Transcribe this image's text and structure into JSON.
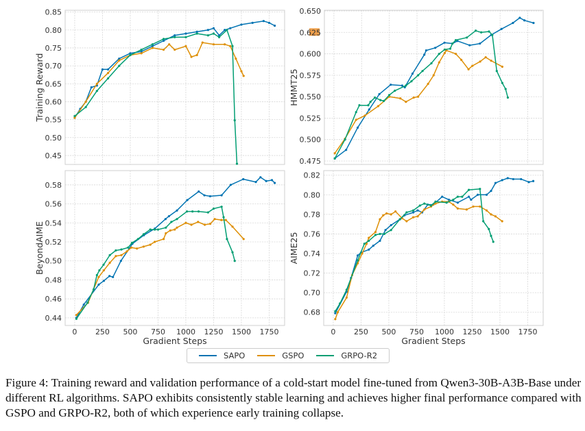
{
  "colors": {
    "SAPO": "#0173b2",
    "GSPO": "#de8f05",
    "GRPO-R2": "#029e73",
    "grid": "#d6d6d6",
    "highlight": "#f0a04b"
  },
  "legend": [
    {
      "label": "SAPO",
      "color": "#0173b2"
    },
    {
      "label": "GSPO",
      "color": "#de8f05"
    },
    {
      "label": "GRPO-R2",
      "color": "#029e73"
    }
  ],
  "caption": "Figure 4: Training reward and validation performance of a cold-start model fine-tuned from Qwen3-30B-A3B-Base under different RL algorithms. SAPO exhibits consistently stable learning and achieves higher final performance compared with GSPO and GRPO-R2, both of which experience early training collapse.",
  "chart_data": [
    {
      "type": "line",
      "title": "",
      "xlabel": "",
      "ylabel": "Training Reward",
      "xlim": [
        -86,
        1889
      ],
      "ylim": [
        0.425,
        0.855
      ],
      "grid": true,
      "xticks": [
        0,
        250,
        500,
        750,
        1000,
        1250,
        1500,
        1750
      ],
      "xtick_labels": [],
      "yticks": [
        0.45,
        0.5,
        0.55,
        0.6,
        0.65,
        0.7,
        0.75,
        0.8,
        0.85
      ],
      "ytick_labels": [
        "0.45",
        "0.50",
        "0.55",
        "0.60",
        "0.65",
        "0.70",
        "0.75",
        "0.80",
        "0.85"
      ],
      "series": [
        {
          "name": "SAPO",
          "x": [
            0,
            50,
            100,
            150,
            200,
            250,
            300,
            400,
            500,
            600,
            700,
            800,
            900,
            1000,
            1100,
            1200,
            1250,
            1300,
            1350,
            1400,
            1500,
            1600,
            1700,
            1750,
            1800
          ],
          "y": [
            0.555,
            0.58,
            0.6,
            0.64,
            0.645,
            0.69,
            0.69,
            0.72,
            0.735,
            0.74,
            0.755,
            0.77,
            0.785,
            0.79,
            0.795,
            0.8,
            0.805,
            0.785,
            0.8,
            0.805,
            0.815,
            0.82,
            0.825,
            0.82,
            0.812
          ]
        },
        {
          "name": "GSPO",
          "x": [
            0,
            100,
            200,
            300,
            400,
            500,
            600,
            700,
            800,
            850,
            900,
            1000,
            1050,
            1100,
            1150,
            1250,
            1350,
            1400,
            1450,
            1500,
            1520
          ],
          "y": [
            0.555,
            0.6,
            0.65,
            0.68,
            0.715,
            0.73,
            0.735,
            0.75,
            0.745,
            0.76,
            0.745,
            0.755,
            0.725,
            0.73,
            0.765,
            0.76,
            0.76,
            0.755,
            0.72,
            0.685,
            0.672
          ]
        },
        {
          "name": "GRPO-R2",
          "x": [
            0,
            100,
            200,
            300,
            400,
            500,
            600,
            700,
            800,
            900,
            1000,
            1100,
            1200,
            1250,
            1300,
            1370,
            1420,
            1440,
            1460
          ],
          "y": [
            0.56,
            0.585,
            0.63,
            0.665,
            0.7,
            0.73,
            0.745,
            0.76,
            0.775,
            0.78,
            0.78,
            0.79,
            0.785,
            0.79,
            0.78,
            0.8,
            0.755,
            0.548,
            0.427
          ]
        }
      ]
    },
    {
      "type": "line",
      "title": "",
      "xlabel": "",
      "ylabel": "HMMT25",
      "xlim": [
        -86,
        1889
      ],
      "ylim": [
        0.471,
        0.6508
      ],
      "grid": true,
      "xticks": [
        0,
        250,
        500,
        750,
        1000,
        1250,
        1500,
        1750
      ],
      "xtick_labels": [],
      "yticks": [
        0.475,
        0.5,
        0.525,
        0.55,
        0.575,
        0.6,
        0.625,
        0.65
      ],
      "ytick_labels": [
        "0.475",
        "0.500",
        "0.525",
        "0.550",
        "0.575",
        "0.600",
        "0.625",
        "0.650"
      ],
      "highlighted_tick": "0.625",
      "series": [
        {
          "name": "SAPO",
          "x": [
            8,
            110,
            215,
            318,
            410,
            513,
            616,
            640,
            710,
            816,
            833,
            915,
            998,
            1070,
            1115,
            1225,
            1318,
            1420,
            1513,
            1616,
            1678,
            1720,
            1802
          ],
          "y": [
            0.478,
            0.488,
            0.514,
            0.535,
            0.553,
            0.564,
            0.563,
            0.561,
            0.577,
            0.599,
            0.604,
            0.607,
            0.613,
            0.612,
            0.615,
            0.61,
            0.612,
            0.622,
            0.629,
            0.636,
            0.642,
            0.639,
            0.636
          ]
        },
        {
          "name": "GSPO",
          "x": [
            8,
            100,
            200,
            280,
            400,
            500,
            600,
            650,
            720,
            760,
            850,
            900,
            950,
            1000,
            1015,
            1100,
            1150,
            1215,
            1250,
            1320,
            1370,
            1420,
            1520
          ],
          "y": [
            0.484,
            0.501,
            0.523,
            0.528,
            0.539,
            0.55,
            0.548,
            0.544,
            0.549,
            0.55,
            0.565,
            0.575,
            0.59,
            0.601,
            0.604,
            0.6,
            0.593,
            0.582,
            0.586,
            0.591,
            0.596,
            0.592,
            0.585
          ]
        },
        {
          "name": "GRPO-R2",
          "x": [
            8,
            100,
            200,
            230,
            310,
            330,
            370,
            420,
            450,
            500,
            550,
            650,
            700,
            760,
            800,
            880,
            950,
            1000,
            1050,
            1070,
            1100,
            1200,
            1280,
            1330,
            1400,
            1430,
            1470,
            1520,
            1550,
            1570
          ],
          "y": [
            0.478,
            0.5,
            0.532,
            0.54,
            0.54,
            0.544,
            0.549,
            0.546,
            0.545,
            0.552,
            0.557,
            0.563,
            0.568,
            0.575,
            0.58,
            0.589,
            0.6,
            0.605,
            0.606,
            0.612,
            0.616,
            0.619,
            0.627,
            0.625,
            0.626,
            0.622,
            0.58,
            0.566,
            0.559,
            0.549
          ]
        }
      ]
    },
    {
      "type": "line",
      "title": "",
      "xlabel": "Gradient Steps",
      "ylabel": "BeyondAIME",
      "xlim": [
        -86,
        1889
      ],
      "ylim": [
        0.432,
        0.595
      ],
      "grid": true,
      "xticks": [
        0,
        250,
        500,
        750,
        1000,
        1250,
        1500,
        1750
      ],
      "xtick_labels": [
        "0",
        "250",
        "500",
        "750",
        "1000",
        "1250",
        "1500",
        "1750"
      ],
      "yticks": [
        0.44,
        0.46,
        0.48,
        0.5,
        0.52,
        0.54,
        0.56,
        0.58
      ],
      "ytick_labels": [
        "0.44",
        "0.46",
        "0.48",
        "0.50",
        "0.52",
        "0.54",
        "0.56",
        "0.58"
      ],
      "series": [
        {
          "name": "SAPO",
          "x": [
            15,
            82,
            216,
            262,
            313,
            344,
            416,
            519,
            622,
            721,
            817,
            848,
            920,
            1013,
            1116,
            1167,
            1219,
            1322,
            1404,
            1517,
            1630,
            1672,
            1723,
            1775,
            1800
          ],
          "y": [
            0.44,
            0.454,
            0.475,
            0.479,
            0.484,
            0.483,
            0.5,
            0.518,
            0.527,
            0.534,
            0.544,
            0.547,
            0.553,
            0.564,
            0.573,
            0.569,
            0.568,
            0.569,
            0.58,
            0.586,
            0.583,
            0.588,
            0.584,
            0.585,
            0.582
          ]
        },
        {
          "name": "GSPO",
          "x": [
            15,
            120,
            216,
            262,
            316,
            370,
            420,
            470,
            510,
            560,
            620,
            680,
            720,
            800,
            820,
            860,
            900,
            920,
            1000,
            1050,
            1110,
            1170,
            1220,
            1260,
            1320,
            1360,
            1420,
            1520
          ],
          "y": [
            0.443,
            0.456,
            0.483,
            0.49,
            0.498,
            0.505,
            0.506,
            0.51,
            0.514,
            0.513,
            0.515,
            0.517,
            0.52,
            0.523,
            0.529,
            0.532,
            0.533,
            0.535,
            0.54,
            0.538,
            0.541,
            0.538,
            0.539,
            0.544,
            0.543,
            0.543,
            0.536,
            0.523
          ]
        },
        {
          "name": "GRPO-R2",
          "x": [
            15,
            115,
            170,
            200,
            222,
            260,
            316,
            370,
            420,
            480,
            516,
            570,
            620,
            680,
            720,
            750,
            820,
            870,
            920,
            1010,
            1060,
            1115,
            1200,
            1250,
            1322,
            1340,
            1370,
            1420,
            1440
          ],
          "y": [
            0.439,
            0.456,
            0.47,
            0.485,
            0.49,
            0.496,
            0.506,
            0.511,
            0.512,
            0.514,
            0.519,
            0.523,
            0.528,
            0.533,
            0.533,
            0.533,
            0.535,
            0.541,
            0.544,
            0.552,
            0.552,
            0.552,
            0.551,
            0.555,
            0.557,
            0.546,
            0.523,
            0.509,
            0.5
          ]
        }
      ]
    },
    {
      "type": "line",
      "title": "",
      "xlabel": "Gradient Steps",
      "ylabel": "AIME25",
      "xlim": [
        -86,
        1889
      ],
      "ylim": [
        0.6665,
        0.8247
      ],
      "grid": true,
      "xticks": [
        0,
        250,
        500,
        750,
        1000,
        1250,
        1500,
        1750
      ],
      "xtick_labels": [
        "0",
        "250",
        "500",
        "750",
        "1000",
        "1250",
        "1500",
        "1750"
      ],
      "yticks": [
        0.68,
        0.7,
        0.72,
        0.74,
        0.76,
        0.78,
        0.8,
        0.82
      ],
      "ytick_labels": [
        "0.68",
        "0.70",
        "0.72",
        "0.74",
        "0.76",
        "0.78",
        "0.80",
        "0.82"
      ],
      "series": [
        {
          "name": "SAPO",
          "x": [
            18,
            120,
            160,
            220,
            250,
            320,
            360,
            420,
            470,
            520,
            600,
            640,
            720,
            760,
            800,
            850,
            900,
            980,
            1040,
            1120,
            1220,
            1240,
            1300,
            1380,
            1420,
            1460,
            1520,
            1570,
            1620,
            1690,
            1760,
            1800
          ],
          "y": [
            0.679,
            0.701,
            0.715,
            0.738,
            0.741,
            0.744,
            0.748,
            0.753,
            0.764,
            0.769,
            0.775,
            0.779,
            0.782,
            0.784,
            0.782,
            0.79,
            0.79,
            0.798,
            0.795,
            0.792,
            0.798,
            0.795,
            0.8,
            0.8,
            0.804,
            0.812,
            0.815,
            0.817,
            0.816,
            0.816,
            0.813,
            0.814
          ]
        },
        {
          "name": "GSPO",
          "x": [
            18,
            40,
            120,
            170,
            220,
            260,
            300,
            320,
            380,
            420,
            450,
            480,
            520,
            560,
            620,
            660,
            720,
            760,
            820,
            880,
            920,
            980,
            1040,
            1080,
            1120,
            1200,
            1260,
            1320,
            1380,
            1420,
            1460,
            1520
          ],
          "y": [
            0.673,
            0.68,
            0.695,
            0.718,
            0.73,
            0.74,
            0.75,
            0.756,
            0.762,
            0.775,
            0.779,
            0.781,
            0.78,
            0.783,
            0.776,
            0.773,
            0.777,
            0.778,
            0.785,
            0.788,
            0.791,
            0.793,
            0.793,
            0.79,
            0.786,
            0.785,
            0.788,
            0.788,
            0.784,
            0.78,
            0.778,
            0.773
          ]
        },
        {
          "name": "GRPO-R2",
          "x": [
            18,
            60,
            120,
            220,
            280,
            320,
            380,
            420,
            460,
            520,
            600,
            660,
            720,
            780,
            820,
            880,
            920,
            1020,
            1080,
            1120,
            1160,
            1220,
            1320,
            1350,
            1400,
            1420,
            1440
          ],
          "y": [
            0.681,
            0.689,
            0.703,
            0.733,
            0.75,
            0.753,
            0.759,
            0.76,
            0.76,
            0.764,
            0.775,
            0.782,
            0.784,
            0.789,
            0.791,
            0.789,
            0.793,
            0.792,
            0.795,
            0.798,
            0.798,
            0.805,
            0.806,
            0.773,
            0.765,
            0.758,
            0.752
          ]
        }
      ]
    }
  ]
}
